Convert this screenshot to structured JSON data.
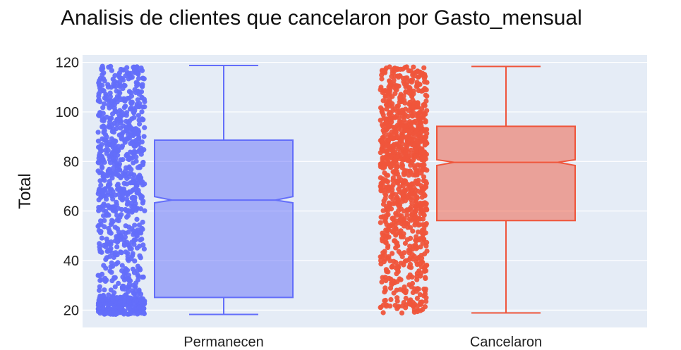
{
  "chart_data": {
    "type": "box",
    "title": "Analisis de clientes que cancelaron por Gasto_mensual",
    "xlabel": "",
    "ylabel": "Total",
    "ylim": [
      13,
      123
    ],
    "yticks": [
      20,
      40,
      60,
      80,
      100,
      120
    ],
    "categories": [
      "Permanecen",
      "Cancelaron"
    ],
    "notched": true,
    "points": "all (jittered)",
    "grid": true,
    "background": "#E5ECF6",
    "series": [
      {
        "name": "Permanecen",
        "color": "#636EFA",
        "min": 18.25,
        "q1": 25.1,
        "median": 64.4,
        "q3": 88.6,
        "max": 118.75,
        "notch_low": 63.3,
        "notch_high": 65.8
      },
      {
        "name": "Cancelaron",
        "color": "#EF553B",
        "min": 18.85,
        "q1": 56.15,
        "median": 79.65,
        "q3": 94.2,
        "max": 118.35,
        "notch_low": 78.4,
        "notch_high": 80.7
      }
    ]
  }
}
